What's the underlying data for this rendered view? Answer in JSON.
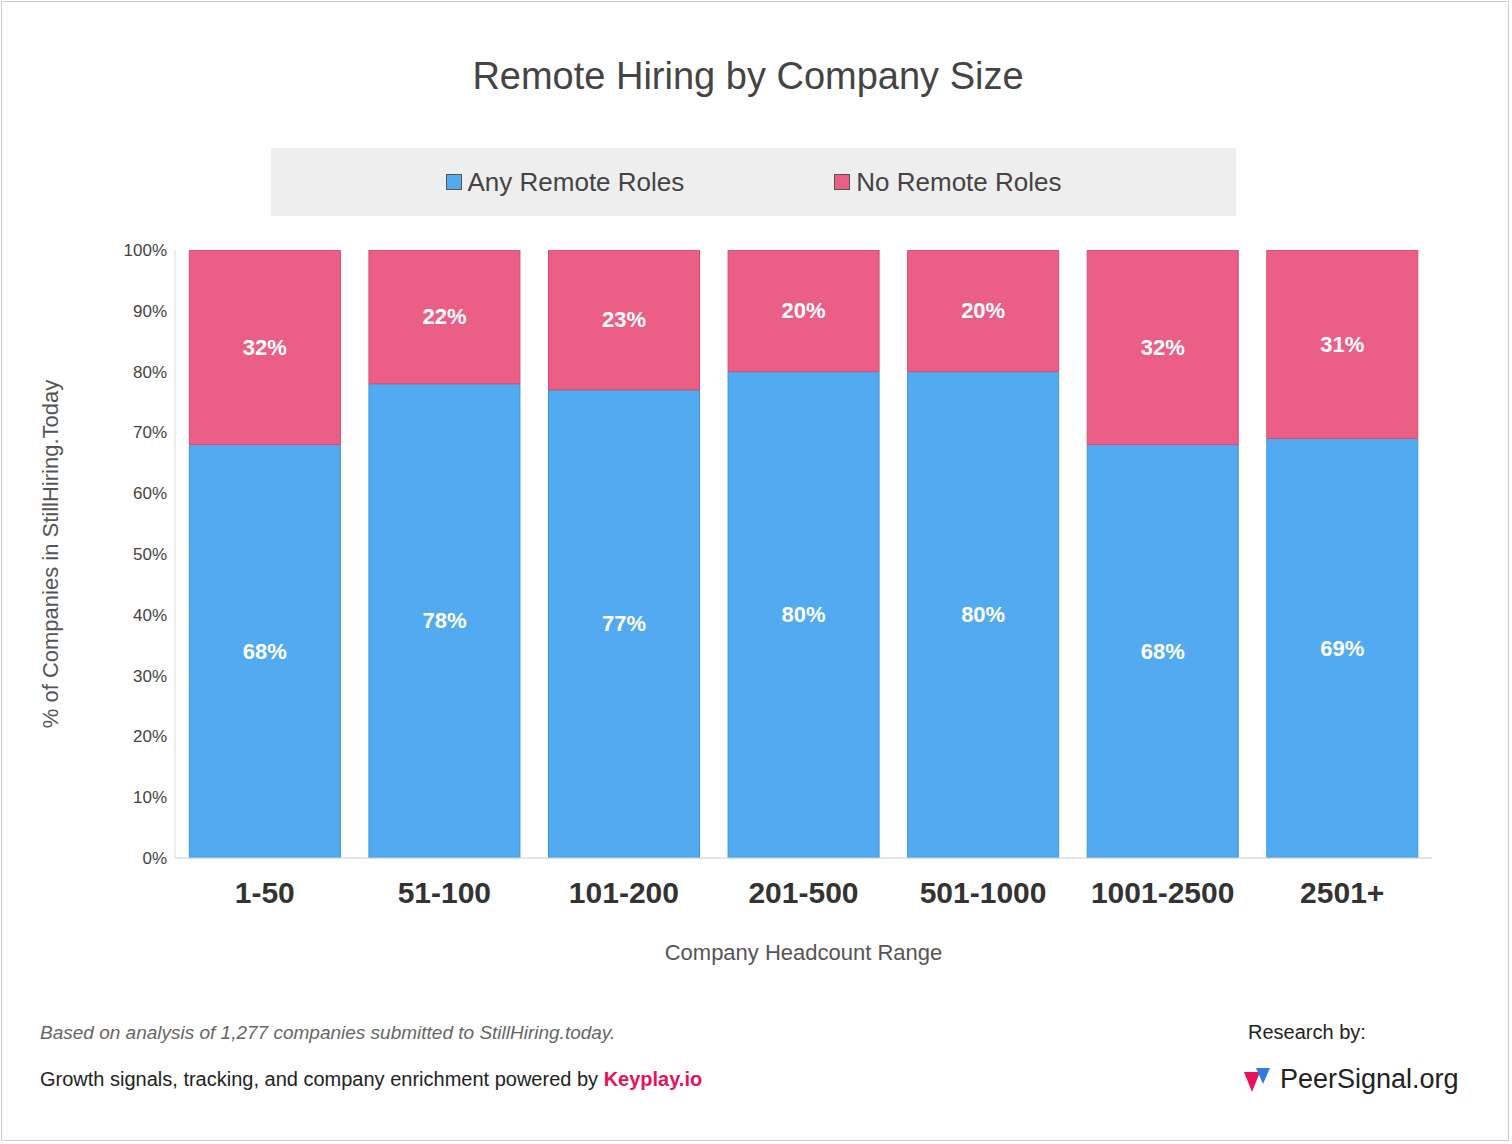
{
  "chart_data": {
    "type": "bar",
    "title": "Remote Hiring by Company Size",
    "x_label": "Company Headcount Range",
    "y_label": "% of Companies in StillHiring.Today",
    "categories": [
      "1-50",
      "51-100",
      "101-200",
      "201-500",
      "501-1000",
      "1001-2500",
      "2501+"
    ],
    "series": [
      {
        "name": "Any Remote Roles",
        "color": "#52abf0",
        "values": [
          68,
          78,
          77,
          80,
          80,
          68,
          69
        ],
        "value_labels": [
          "68%",
          "78%",
          "77%",
          "80%",
          "80%",
          "68%",
          "69%"
        ]
      },
      {
        "name": "No Remote Roles",
        "color": "#eb5e86",
        "values": [
          32,
          22,
          23,
          20,
          20,
          32,
          31
        ],
        "value_labels": [
          "32%",
          "22%",
          "23%",
          "20%",
          "20%",
          "32%",
          "31%"
        ]
      }
    ],
    "stacked": true,
    "data_labels": true,
    "legend": "top",
    "grid": false,
    "ylim": [
      0,
      100
    ],
    "yticks": [
      {
        "value": 0,
        "label": "0%"
      },
      {
        "value": 10,
        "label": "10%"
      },
      {
        "value": 20,
        "label": "20%"
      },
      {
        "value": 30,
        "label": "30%"
      },
      {
        "value": 40,
        "label": "40%"
      },
      {
        "value": 50,
        "label": "50%"
      },
      {
        "value": 60,
        "label": "60%"
      },
      {
        "value": 70,
        "label": "70%"
      },
      {
        "value": 80,
        "label": "80%"
      },
      {
        "value": 90,
        "label": "90%"
      },
      {
        "value": 100,
        "label": "100%"
      }
    ],
    "footnote": "Based on analysis of 1,277 companies submitted to StillHiring.today.",
    "credit": "Growth signals, tracking, and company enrichment powered by",
    "credit_brand": "Keyplay.io",
    "research_label": "Research by:",
    "research_org": "PeerSignal.org"
  }
}
